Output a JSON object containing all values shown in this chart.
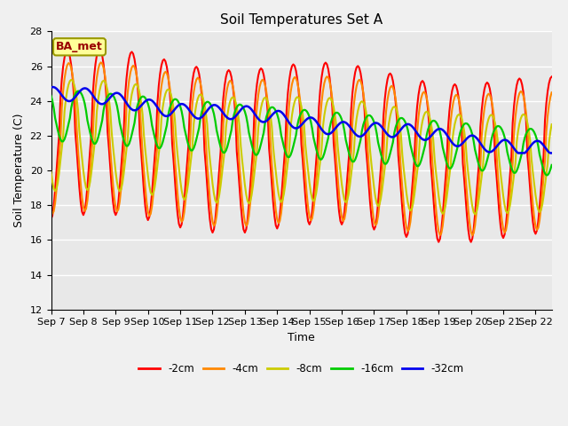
{
  "title": "Soil Temperatures Set A",
  "xlabel": "Time",
  "ylabel": "Soil Temperature (C)",
  "ylim": [
    12,
    28
  ],
  "xlim": [
    0,
    15.5
  ],
  "annotation": "BA_met",
  "tick_labels": [
    "Sep 7",
    "Sep 8",
    "Sep 9",
    "Sep 10",
    "Sep 11",
    "Sep 12",
    "Sep 13",
    "Sep 14",
    "Sep 15",
    "Sep 16",
    "Sep 17",
    "Sep 18",
    "Sep 19",
    "Sep 20",
    "Sep 21",
    "Sep 22"
  ],
  "legend_labels": [
    "-2cm",
    "-4cm",
    "-8cm",
    "-16cm",
    "-32cm"
  ],
  "line_colors": [
    "#ff0000",
    "#ff8800",
    "#cccc00",
    "#00cc00",
    "#0000ee"
  ],
  "bg_color": "#e8e8e8",
  "plot_bg": "#f0f0f0",
  "title_fontsize": 11,
  "label_fontsize": 9,
  "tick_fontsize": 8
}
